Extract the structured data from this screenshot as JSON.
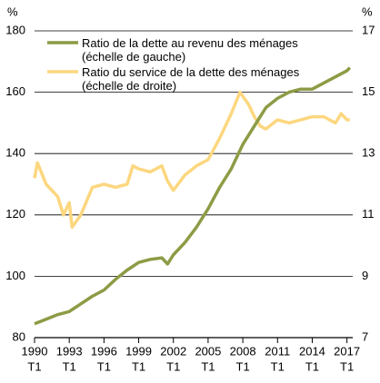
{
  "chart_data": {
    "type": "line",
    "ylabel": "%",
    "y2label": "%",
    "xlim": [
      1990,
      2017.5
    ],
    "xticks": [
      {
        "value": 1990,
        "label": "1990",
        "sublabel": "T1"
      },
      {
        "value": 1993,
        "label": "1993",
        "sublabel": "T1"
      },
      {
        "value": 1996,
        "label": "1996",
        "sublabel": "T1"
      },
      {
        "value": 1999,
        "label": "1999",
        "sublabel": "T1"
      },
      {
        "value": 2002,
        "label": "2002",
        "sublabel": "T1"
      },
      {
        "value": 2005,
        "label": "2005",
        "sublabel": "T1"
      },
      {
        "value": 2008,
        "label": "2008",
        "sublabel": "T1"
      },
      {
        "value": 2011,
        "label": "2011",
        "sublabel": "T1"
      },
      {
        "value": 2014,
        "label": "2014",
        "sublabel": "T1"
      },
      {
        "value": 2017,
        "label": "2017",
        "sublabel": "T1"
      }
    ],
    "ylim": [
      80,
      180
    ],
    "yticks": [
      80,
      100,
      120,
      140,
      160,
      180
    ],
    "y2lim": [
      7,
      17
    ],
    "y2ticks": [
      7,
      9,
      11,
      13,
      15,
      17
    ],
    "grid": true,
    "legend": "top-left",
    "series": [
      {
        "name": "Ratio de la dette au revenu des ménages (échelle de gauche)",
        "color": "#8c9c45",
        "x": [
          1990,
          1991,
          1992,
          1993,
          1994,
          1995,
          1996,
          1997,
          1998,
          1999,
          2000,
          2001,
          2001.5,
          2002,
          2003,
          2004,
          2005,
          2006,
          2007,
          2008,
          2009,
          2010,
          2011,
          2012,
          2013,
          2014,
          2015,
          2016,
          2017,
          2017.25
        ],
        "values": [
          84.5,
          86,
          87.5,
          88.5,
          91,
          93.5,
          95.5,
          99,
          102,
          104.5,
          105.5,
          106,
          104,
          107,
          111,
          116,
          122,
          129,
          135,
          143,
          149,
          155,
          158,
          160,
          161,
          161,
          163,
          165,
          167,
          168
        ]
      },
      {
        "name": "Ratio du service de la dette des ménages (échelle de droite)",
        "color": "#fcd77f",
        "axis": "y2",
        "x": [
          1990,
          1990.25,
          1991,
          1992,
          1992.5,
          1993,
          1993.25,
          1994,
          1995,
          1996,
          1997,
          1998,
          1998.5,
          1999,
          2000,
          2001,
          2001.5,
          2002,
          2003,
          2004,
          2005,
          2006,
          2007,
          2007.75,
          2008.5,
          2009,
          2009.5,
          2010,
          2011,
          2012,
          2013,
          2014,
          2015,
          2016,
          2016.5,
          2017,
          2017.25
        ],
        "values": [
          12.2,
          12.7,
          12.0,
          11.6,
          11.0,
          11.4,
          10.6,
          11.0,
          11.9,
          12.0,
          11.9,
          12.0,
          12.6,
          12.5,
          12.4,
          12.6,
          12.1,
          11.8,
          12.3,
          12.6,
          12.8,
          13.5,
          14.3,
          15.0,
          14.6,
          14.2,
          13.9,
          13.8,
          14.1,
          14.0,
          14.1,
          14.2,
          14.2,
          14.0,
          14.3,
          14.1,
          14.1
        ]
      }
    ]
  }
}
